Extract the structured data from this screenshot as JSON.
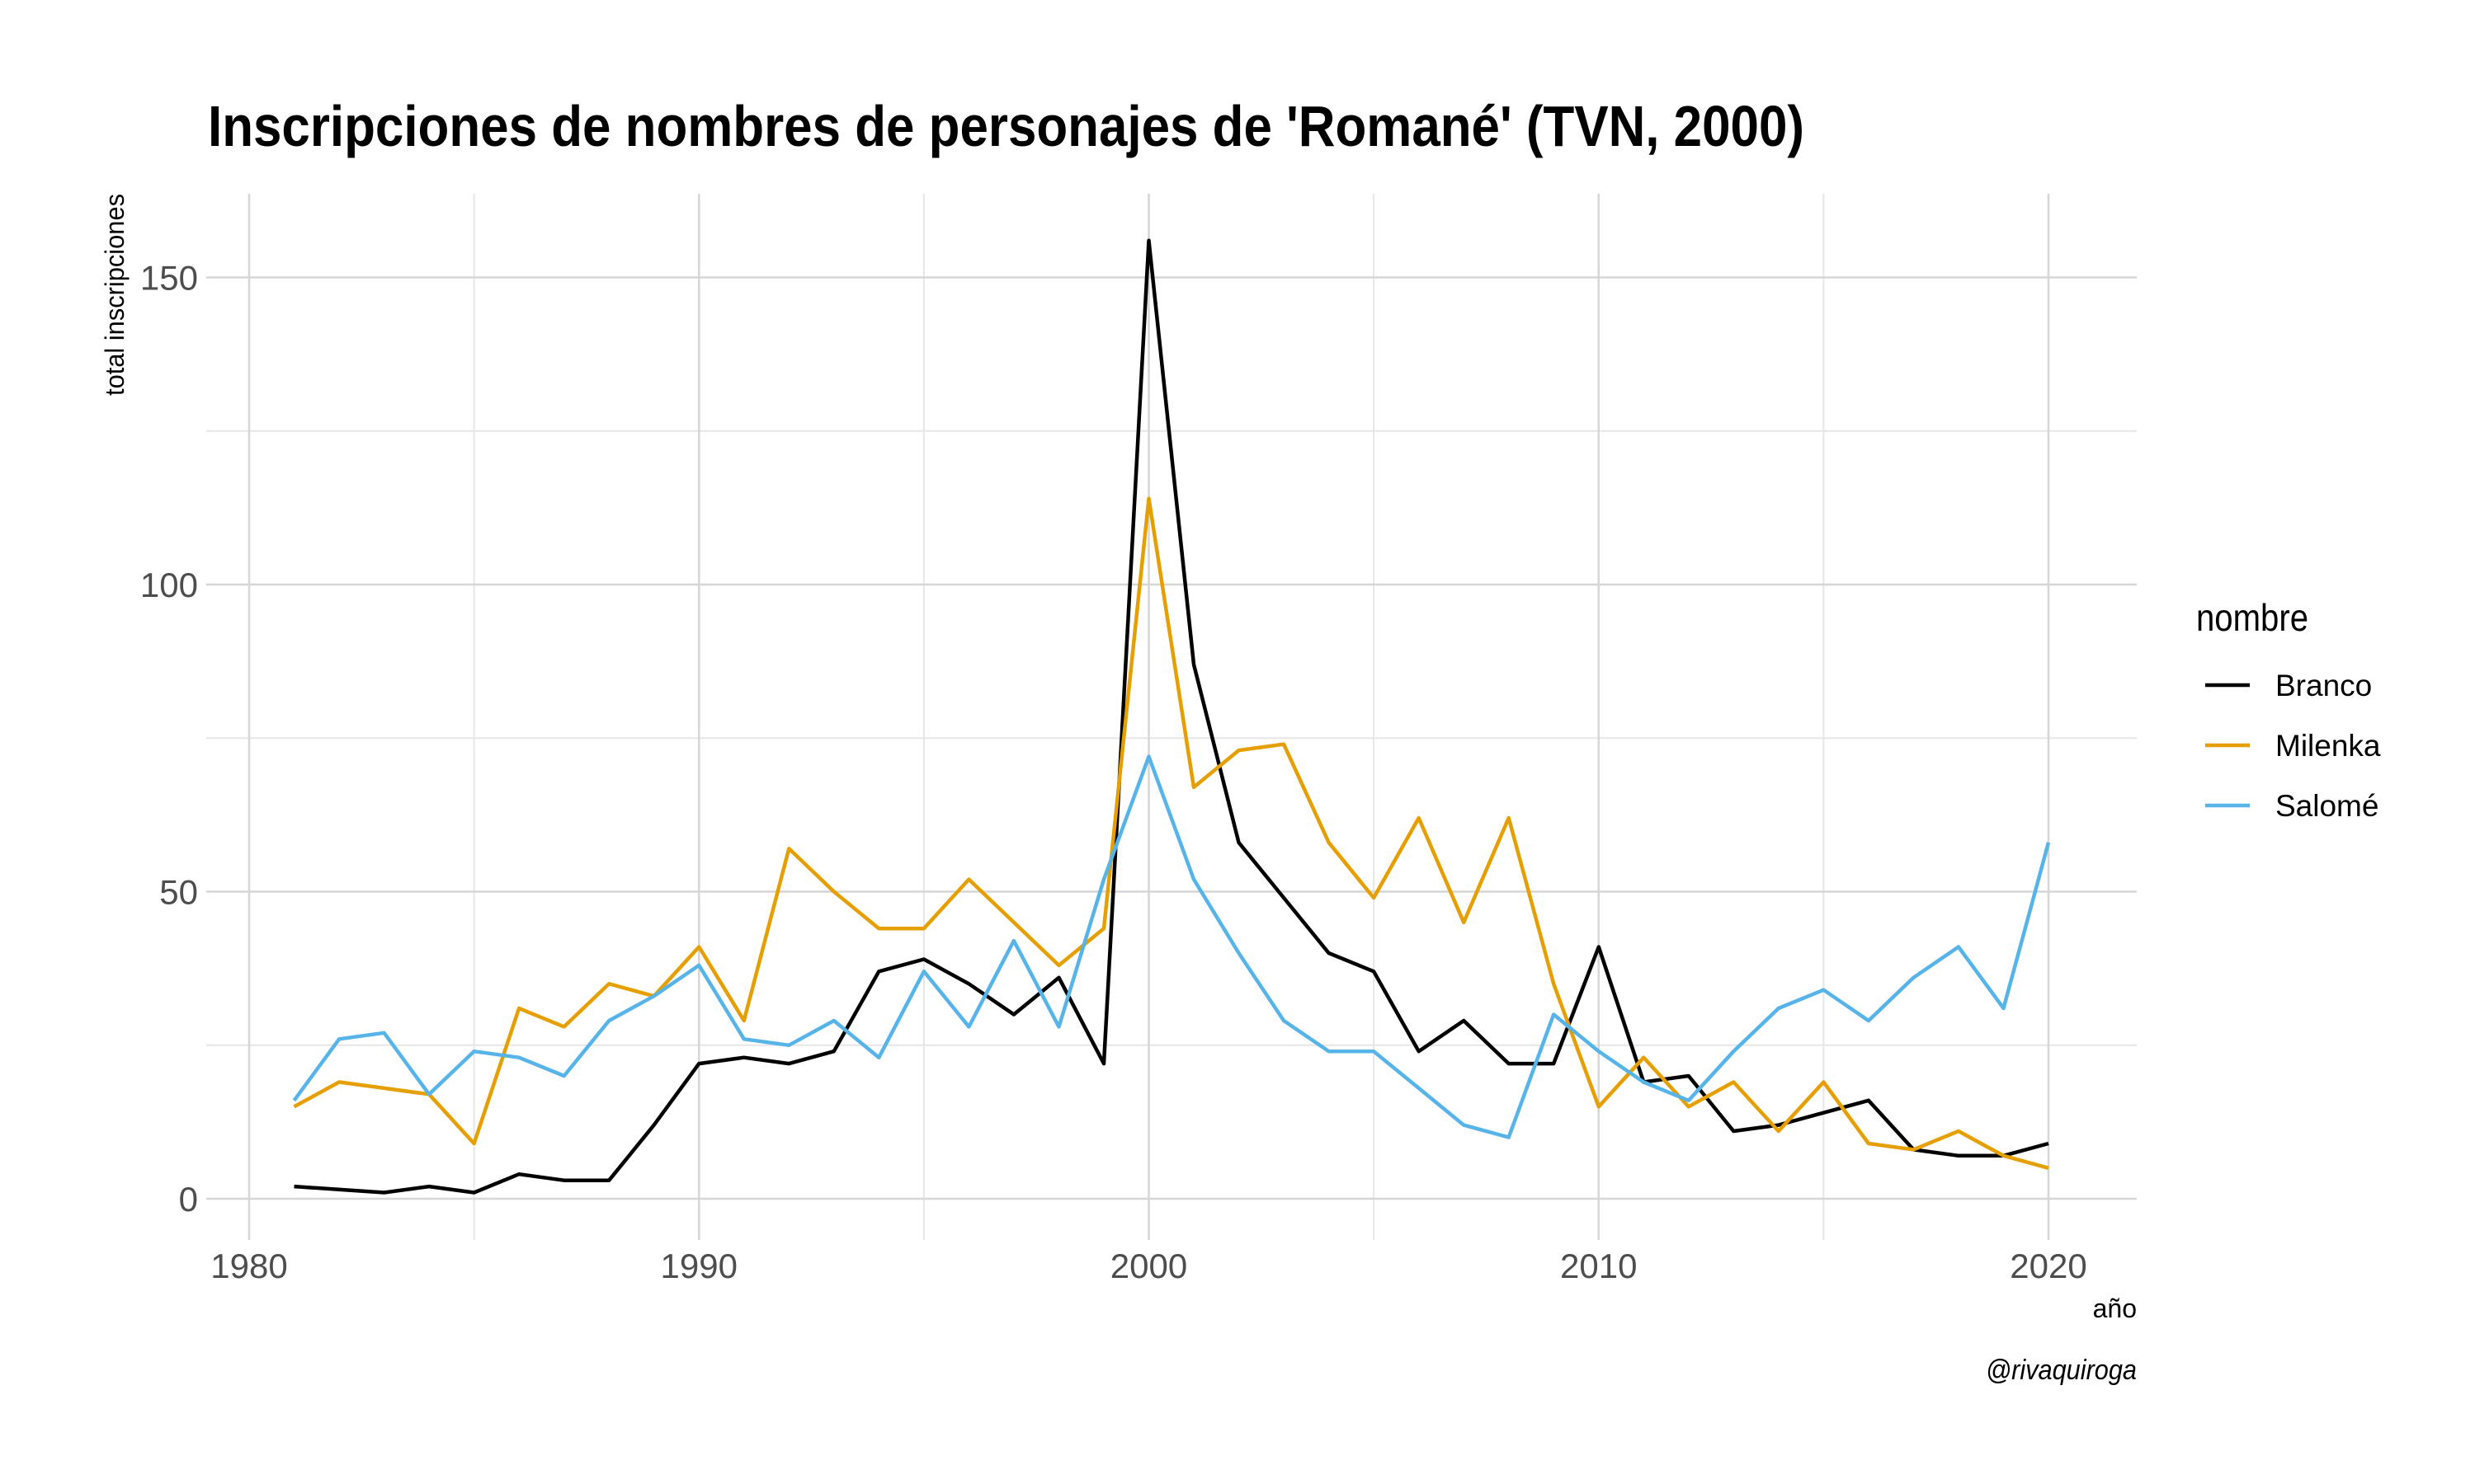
{
  "chart_data": {
    "type": "line",
    "title": "Inscripciones de nombres de personajes de 'Romané' (TVN, 2000)",
    "xlabel": "año",
    "ylabel": "total inscripciones",
    "caption": "@rivaquiroga",
    "xlim": [
      1980,
      2022
    ],
    "ylim": [
      -7,
      164
    ],
    "x_ticks": [
      1980,
      1990,
      2000,
      2010,
      2020
    ],
    "y_ticks": [
      0,
      50,
      100,
      150
    ],
    "grid": true,
    "legend": {
      "title": "nombre",
      "position": "right"
    },
    "series": [
      {
        "name": "Branco",
        "color": "#000000",
        "x": [
          1981,
          1983,
          1984,
          1985,
          1986,
          1987,
          1988,
          1989,
          1990,
          1991,
          1992,
          1993,
          1994,
          1995,
          1996,
          1997,
          1998,
          1999,
          2000,
          2001,
          2002,
          2003,
          2004,
          2005,
          2006,
          2007,
          2008,
          2009,
          2010,
          2011,
          2012,
          2013,
          2014,
          2015,
          2016,
          2017,
          2018,
          2019,
          2020
        ],
        "values": [
          2,
          1,
          2,
          1,
          4,
          3,
          3,
          12,
          22,
          23,
          22,
          24,
          37,
          39,
          35,
          30,
          36,
          22,
          156,
          87,
          58,
          49,
          40,
          37,
          24,
          29,
          22,
          22,
          41,
          19,
          20,
          11,
          12,
          14,
          16,
          8,
          7,
          7,
          9
        ]
      },
      {
        "name": "Milenka",
        "color": "#E69F00",
        "x": [
          1981,
          1982,
          1983,
          1984,
          1985,
          1986,
          1987,
          1988,
          1989,
          1990,
          1991,
          1992,
          1993,
          1994,
          1995,
          1996,
          1997,
          1998,
          1999,
          2000,
          2001,
          2002,
          2003,
          2004,
          2005,
          2006,
          2007,
          2008,
          2009,
          2010,
          2011,
          2012,
          2013,
          2014,
          2015,
          2016,
          2017,
          2018,
          2019,
          2020
        ],
        "values": [
          15,
          19,
          18,
          17,
          9,
          31,
          28,
          35,
          33,
          41,
          29,
          57,
          50,
          44,
          44,
          52,
          45,
          38,
          44,
          114,
          67,
          73,
          74,
          58,
          49,
          62,
          45,
          62,
          35,
          15,
          23,
          15,
          19,
          11,
          19,
          9,
          8,
          11,
          7,
          5
        ]
      },
      {
        "name": "Salomé",
        "color": "#56B4E9",
        "x": [
          1981,
          1982,
          1983,
          1984,
          1985,
          1986,
          1987,
          1988,
          1989,
          1990,
          1991,
          1992,
          1993,
          1994,
          1995,
          1996,
          1997,
          1998,
          1999,
          2000,
          2001,
          2002,
          2003,
          2004,
          2005,
          2006,
          2007,
          2008,
          2009,
          2010,
          2011,
          2012,
          2013,
          2014,
          2015,
          2016,
          2017,
          2018,
          2019,
          2020
        ],
        "values": [
          16,
          26,
          27,
          17,
          24,
          23,
          20,
          29,
          33,
          38,
          26,
          25,
          29,
          23,
          37,
          28,
          42,
          28,
          52,
          72,
          52,
          40,
          29,
          24,
          24,
          18,
          12,
          10,
          30,
          24,
          19,
          16,
          24,
          31,
          34,
          29,
          36,
          41,
          31,
          58
        ]
      }
    ]
  }
}
